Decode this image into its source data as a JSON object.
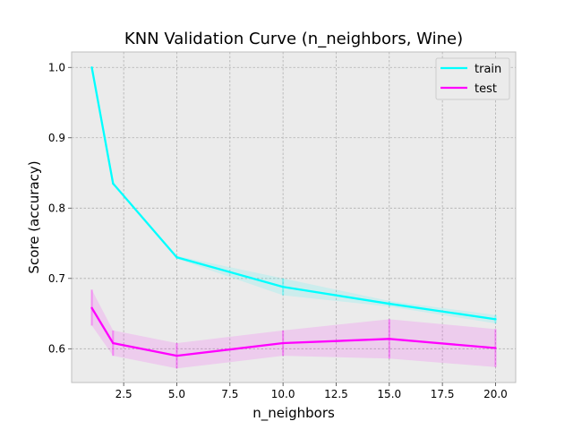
{
  "chart_data": {
    "type": "line",
    "title": "KNN Validation Curve (n_neighbors, Wine)",
    "xlabel": "n_neighbors",
    "ylabel": "Score (accuracy)",
    "x": [
      1,
      2,
      5,
      10,
      15,
      20
    ],
    "xlim": [
      0.05,
      20.95
    ],
    "ylim": [
      0.552,
      1.022
    ],
    "xticks": [
      2.5,
      5.0,
      7.5,
      10.0,
      12.5,
      15.0,
      17.5,
      20.0
    ],
    "xtick_labels": [
      "2.5",
      "5.0",
      "7.5",
      "10.0",
      "12.5",
      "15.0",
      "17.5",
      "20.0"
    ],
    "yticks": [
      0.6,
      0.7,
      0.8,
      0.9,
      1.0
    ],
    "ytick_labels": [
      "0.6",
      "0.7",
      "0.8",
      "0.9",
      "1.0"
    ],
    "grid": true,
    "legend_position": "top-right",
    "series": [
      {
        "name": "train",
        "color": "#00ffff",
        "values": [
          1.0,
          0.835,
          0.73,
          0.688,
          0.664,
          0.642
        ],
        "lower": [
          1.0,
          0.835,
          0.728,
          0.676,
          0.66,
          0.636
        ],
        "upper": [
          1.0,
          0.835,
          0.732,
          0.7,
          0.668,
          0.648
        ]
      },
      {
        "name": "test",
        "color": "#ff00ff",
        "values": [
          0.658,
          0.608,
          0.59,
          0.608,
          0.614,
          0.601
        ],
        "lower": [
          0.633,
          0.59,
          0.572,
          0.59,
          0.586,
          0.574
        ],
        "upper": [
          0.684,
          0.626,
          0.608,
          0.626,
          0.642,
          0.628
        ]
      }
    ]
  }
}
